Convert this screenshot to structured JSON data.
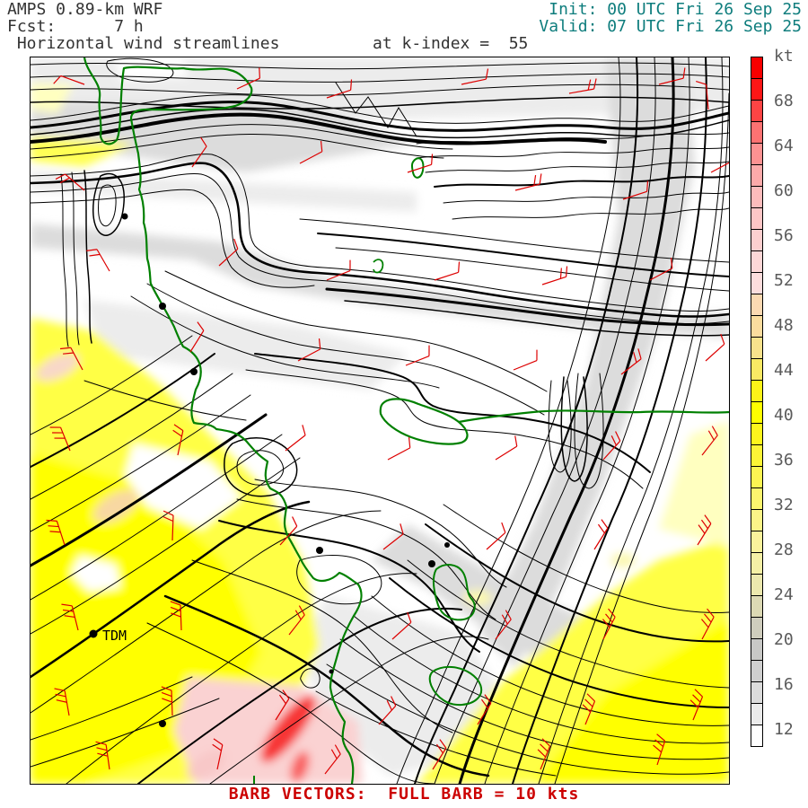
{
  "header": {
    "model": "AMPS 0.89-km WRF",
    "fcst": "Fcst:      7 h",
    "field": " Horizontal wind streamlines",
    "level": "at k-index =  55",
    "init": "Init: 00 UTC Fri 26 Sep 25",
    "valid": "Valid: 07 UTC Fri 26 Sep 25",
    "left_text_color": "#333333",
    "right_text_color": "#0e7d7d"
  },
  "colorbar": {
    "unit": "kt",
    "tick_labels": [
      "68",
      "64",
      "60",
      "56",
      "52",
      "48",
      "44",
      "40",
      "36",
      "32",
      "28",
      "24",
      "20",
      "16",
      "12"
    ],
    "cell_colors_top_to_bottom": [
      "#f80000",
      "#fc1616",
      "#fc4444",
      "#fc7272",
      "#fc9292",
      "#fcaaaa",
      "#fcbcbc",
      "#fcc6c6",
      "#fccfcf",
      "#fcd7d7",
      "#fcdddd",
      "#fbd9b2",
      "#fadc9e",
      "#f8e28c",
      "#f9e964",
      "#fcf218",
      "#fffe00",
      "#fdf51c",
      "#fcf436",
      "#fcf452",
      "#fcf46e",
      "#fcf488",
      "#faf29c",
      "#f5f0a6",
      "#ece8ae",
      "#dcd9b4",
      "#cfcdbd",
      "#c8c8c6",
      "#cfcfcf",
      "#dbdbdb",
      "#ebebeb",
      "#ffffff"
    ]
  },
  "caption": {
    "text": "BARB VECTORS:  FULL BARB = 10 kts",
    "color": "#cc0000"
  },
  "map": {
    "station_label": "TDM",
    "coast_color": "#008000",
    "barb_color": "#dd0000",
    "streamline_color": "#000000"
  }
}
